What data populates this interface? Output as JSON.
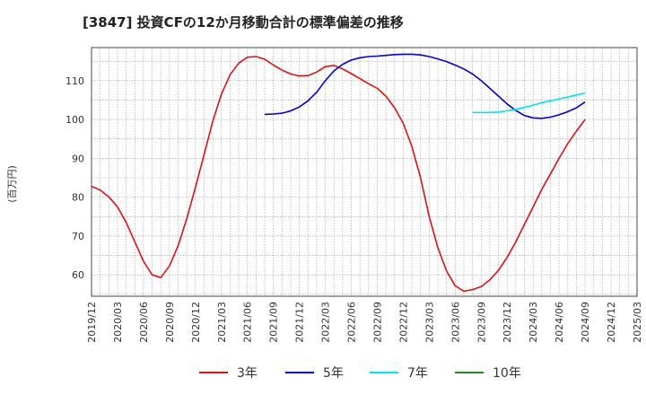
{
  "chart_data": {
    "type": "line",
    "title": "[3847]  投資CFの12か月移動合計の標準偏差の推移",
    "ylabel": "(百万円)",
    "xlabel": "",
    "ylim": [
      54.5,
      118.5
    ],
    "yticks": [
      60,
      70,
      80,
      90,
      100,
      110
    ],
    "xticks": [
      "2019/12",
      "2020/03",
      "2020/06",
      "2020/09",
      "2020/12",
      "2021/03",
      "2021/06",
      "2021/09",
      "2021/12",
      "2022/03",
      "2022/06",
      "2022/09",
      "2022/12",
      "2023/03",
      "2023/06",
      "2023/09",
      "2023/12",
      "2024/03",
      "2024/06",
      "2024/09",
      "2024/12",
      "2025/03"
    ],
    "grid": true,
    "legend_position": "bottom",
    "series": [
      {
        "name": "3年",
        "color": "#dd1111",
        "x": [
          "2019/12",
          "2020/01",
          "2020/02",
          "2020/03",
          "2020/04",
          "2020/05",
          "2020/06",
          "2020/07",
          "2020/08",
          "2020/09",
          "2020/10",
          "2020/11",
          "2020/12",
          "2021/01",
          "2021/02",
          "2021/03",
          "2021/04",
          "2021/05",
          "2021/06",
          "2021/07",
          "2021/08",
          "2021/09",
          "2021/10",
          "2021/11",
          "2021/12",
          "2022/01",
          "2022/02",
          "2022/03",
          "2022/04",
          "2022/05",
          "2022/06",
          "2022/07",
          "2022/08",
          "2022/09",
          "2022/10",
          "2022/11",
          "2022/12",
          "2023/01",
          "2023/02",
          "2023/03",
          "2023/04",
          "2023/05",
          "2023/06",
          "2023/07",
          "2023/08",
          "2023/09",
          "2023/10",
          "2023/11",
          "2023/12",
          "2024/01",
          "2024/02",
          "2024/03",
          "2024/04",
          "2024/05",
          "2024/06",
          "2024/07",
          "2024/08",
          "2024/09"
        ],
        "values": [
          82.8,
          81.8,
          80.1,
          77.5,
          73.5,
          68.5,
          63.5,
          60.0,
          59.3,
          62.3,
          67.5,
          74.5,
          82.5,
          91.0,
          99.5,
          106.5,
          111.5,
          114.5,
          116.0,
          116.2,
          115.5,
          114.0,
          112.7,
          111.7,
          111.2,
          111.3,
          112.2,
          113.6,
          113.9,
          113.0,
          111.8,
          110.5,
          109.2,
          108.0,
          106.0,
          103.0,
          99.0,
          93.0,
          85.0,
          75.0,
          67.0,
          61.0,
          57.2,
          55.8,
          56.2,
          57.0,
          58.7,
          61.2,
          64.5,
          68.5,
          73.0,
          77.5,
          82.0,
          86.0,
          90.0,
          93.8,
          97.0,
          100.0
        ]
      },
      {
        "name": "5年",
        "color": "#0000cc",
        "x": [
          "2021/08",
          "2021/09",
          "2021/10",
          "2021/11",
          "2021/12",
          "2022/01",
          "2022/02",
          "2022/03",
          "2022/04",
          "2022/05",
          "2022/06",
          "2022/07",
          "2022/08",
          "2022/09",
          "2022/10",
          "2022/11",
          "2022/12",
          "2023/01",
          "2023/02",
          "2023/03",
          "2023/04",
          "2023/05",
          "2023/06",
          "2023/07",
          "2023/08",
          "2023/09",
          "2023/10",
          "2023/11",
          "2023/12",
          "2024/01",
          "2024/02",
          "2024/03",
          "2024/04",
          "2024/05",
          "2024/06",
          "2024/07",
          "2024/08",
          "2024/09"
        ],
        "values": [
          101.3,
          101.4,
          101.6,
          102.2,
          103.2,
          104.8,
          107.0,
          110.0,
          112.5,
          114.2,
          115.3,
          115.9,
          116.2,
          116.3,
          116.5,
          116.7,
          116.8,
          116.8,
          116.6,
          116.2,
          115.6,
          114.9,
          114.0,
          113.0,
          111.7,
          110.0,
          108.0,
          106.0,
          104.0,
          102.3,
          101.0,
          100.4,
          100.3,
          100.6,
          101.2,
          102.0,
          103.0,
          104.5
        ]
      },
      {
        "name": "7年",
        "color": "#00e5ee",
        "x": [
          "2023/08",
          "2023/09",
          "2023/10",
          "2023/11",
          "2023/12",
          "2024/01",
          "2024/02",
          "2024/03",
          "2024/04",
          "2024/05",
          "2024/06",
          "2024/07",
          "2024/08",
          "2024/09"
        ],
        "values": [
          101.8,
          101.8,
          101.8,
          101.9,
          102.2,
          102.6,
          103.1,
          103.7,
          104.3,
          104.8,
          105.3,
          105.8,
          106.3,
          106.8
        ]
      },
      {
        "name": "10年",
        "color": "#228822",
        "x": [],
        "values": []
      }
    ]
  }
}
